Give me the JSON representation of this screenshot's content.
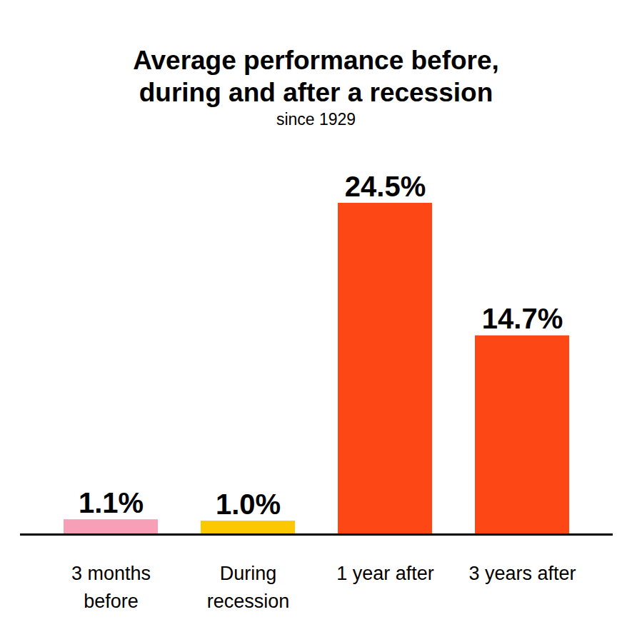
{
  "chart_data": {
    "type": "bar",
    "title": "Average performance before,\nduring and after a recession",
    "subtitle": "since 1929",
    "categories": [
      "3 months\nbefore",
      "During\nrecession",
      "1 year after",
      "3 years after"
    ],
    "values": [
      1.1,
      1.0,
      24.5,
      14.7
    ],
    "value_labels": [
      "1.1%",
      "1.0%",
      "24.5%",
      "14.7%"
    ],
    "colors": [
      "#f89fb8",
      "#fcc900",
      "#fd4715",
      "#fd4715"
    ],
    "data_labels": true,
    "tick_labels": "x",
    "grid": false
  }
}
